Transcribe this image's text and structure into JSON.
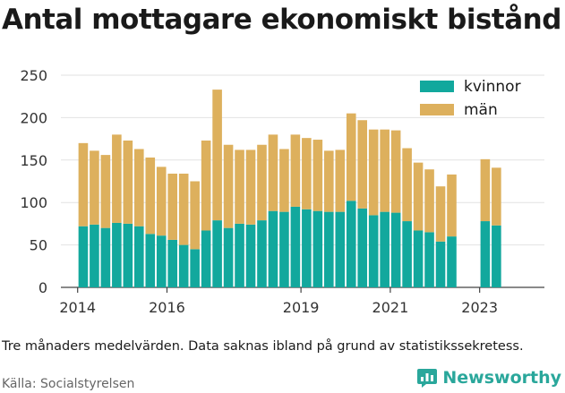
{
  "title": "Antal mottagare ekonomiskt bistånd",
  "caption": "Tre månaders medelvärden. Data saknas ibland på grund av statistikssekretess.",
  "source": "Källa: Socialstyrelsen",
  "brand": "Newsworthy",
  "chart_data": {
    "type": "bar",
    "stacked": true,
    "title": "Antal mottagare ekonomiskt bistånd",
    "xlabel": "",
    "ylabel": "",
    "ylim": [
      0,
      250
    ],
    "y_ticks": [
      0,
      50,
      100,
      150,
      200,
      250
    ],
    "x_ticks": [
      {
        "label": "2014",
        "at": 2014.0
      },
      {
        "label": "2016",
        "at": 2016.0
      },
      {
        "label": "2019",
        "at": 2019.0
      },
      {
        "label": "2021",
        "at": 2021.0
      },
      {
        "label": "2023",
        "at": 2023.0
      }
    ],
    "grid": "horizontal",
    "legend_position": "top-right",
    "x": [
      2014.125,
      2014.375,
      2014.625,
      2014.875,
      2015.125,
      2015.375,
      2015.625,
      2015.875,
      2016.125,
      2016.375,
      2016.625,
      2016.875,
      2017.125,
      2017.375,
      2017.625,
      2017.875,
      2018.125,
      2018.375,
      2018.625,
      2018.875,
      2019.125,
      2019.375,
      2019.625,
      2019.875,
      2020.125,
      2020.375,
      2020.625,
      2020.875,
      2021.125,
      2021.375,
      2021.625,
      2021.875,
      2022.125,
      2022.375,
      2022.625,
      2022.875,
      2023.125,
      2023.375,
      2023.625,
      2023.875
    ],
    "series": [
      {
        "name": "kvinnor",
        "color": "#12a89d",
        "values": [
          72,
          74,
          70,
          76,
          75,
          72,
          63,
          61,
          56,
          50,
          45,
          67,
          79,
          70,
          75,
          74,
          79,
          90,
          89,
          95,
          92,
          90,
          89,
          89,
          102,
          93,
          85,
          89,
          88,
          78,
          67,
          65,
          54,
          60,
          null,
          null,
          78,
          73,
          null,
          null
        ]
      },
      {
        "name": "män",
        "color": "#ddb05d",
        "values": [
          98,
          87,
          86,
          104,
          98,
          91,
          90,
          81,
          78,
          84,
          80,
          106,
          154,
          98,
          87,
          88,
          89,
          90,
          74,
          85,
          84,
          84,
          72,
          73,
          103,
          104,
          101,
          97,
          97,
          86,
          80,
          74,
          65,
          73,
          null,
          null,
          73,
          68,
          null,
          null
        ]
      }
    ]
  }
}
